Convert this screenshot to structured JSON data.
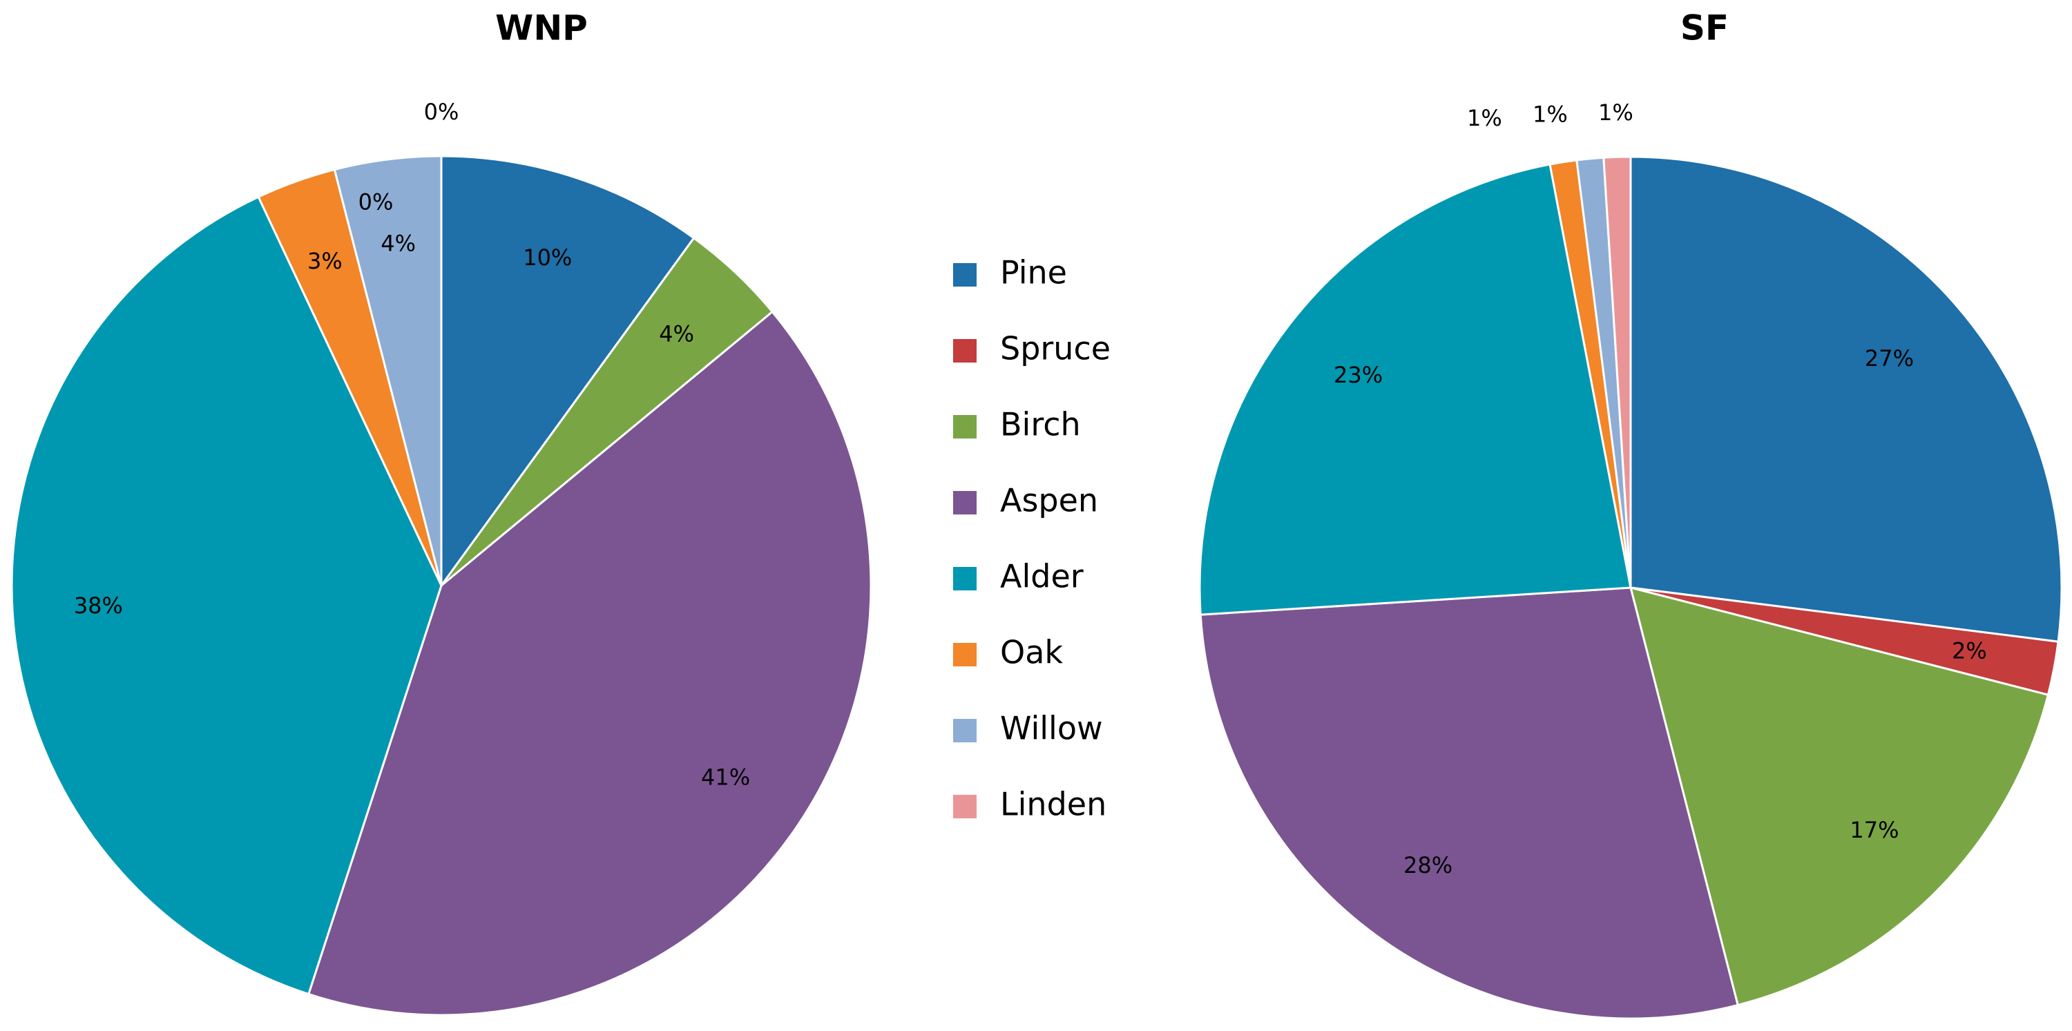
{
  "legend": {
    "labels": [
      "Pine",
      "Spruce",
      "Birch",
      "Aspen",
      "Alder",
      "Oak",
      "Willow",
      "Linden"
    ],
    "colors": [
      "#1f6fa8",
      "#c43c3c",
      "#7aa545",
      "#7b5592",
      "#0098b0",
      "#f28628",
      "#8eadd5",
      "#e99597"
    ]
  },
  "chart_data": [
    {
      "type": "pie",
      "title": "WNP",
      "values": [
        10,
        0,
        4,
        41,
        38,
        3,
        4,
        0
      ],
      "value_labels": [
        "10%",
        "0%",
        "4%",
        "41%",
        "38%",
        "3%",
        "4%",
        "0%"
      ]
    },
    {
      "type": "pie",
      "title": "SF",
      "values": [
        27,
        2,
        17,
        28,
        23,
        1,
        1,
        1
      ],
      "value_labels": [
        "27%",
        "2%",
        "17%",
        "28%",
        "23%",
        "1%",
        "1%",
        "1%"
      ]
    }
  ]
}
